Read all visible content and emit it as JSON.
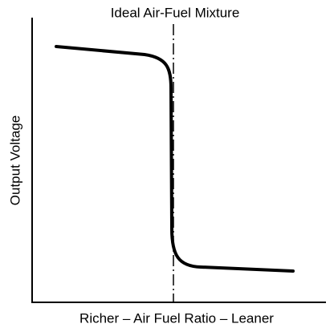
{
  "title": "Ideal Air-Fuel Mixture",
  "y_axis_label": "Output Voltage",
  "x_axis_label": "Richer – Air Fuel Ratio – Leaner"
}
